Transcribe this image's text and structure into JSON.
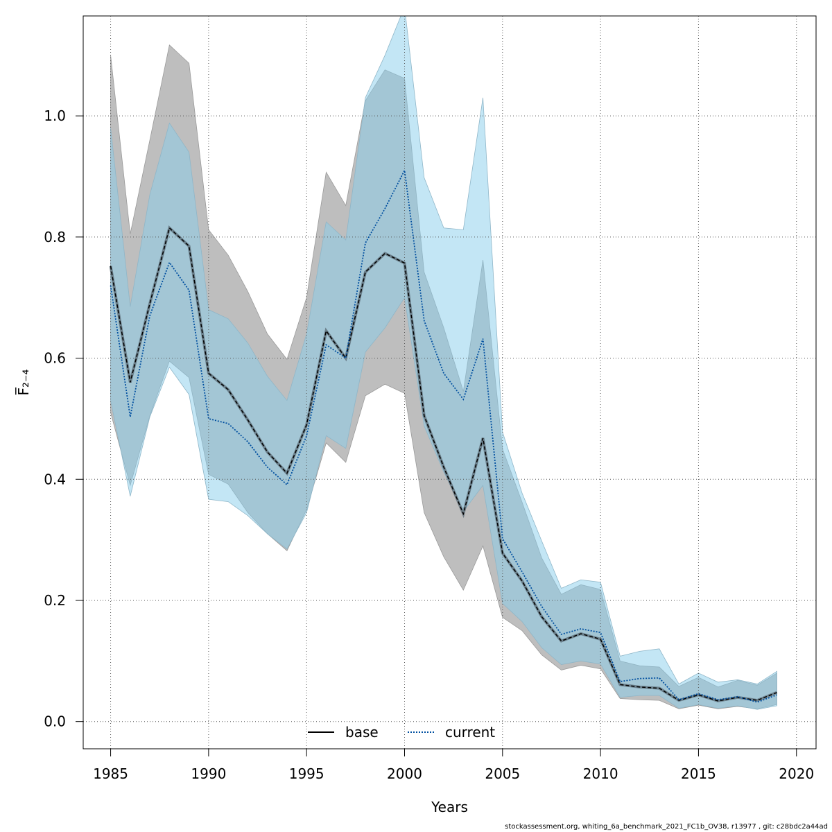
{
  "chart_data": {
    "type": "line",
    "xlabel": "Years",
    "ylabel": "F̅₂₋₄",
    "xlim": [
      1983.6,
      2021.0
    ],
    "ylim": [
      -0.045,
      1.165
    ],
    "x_ticks": [
      1985,
      1990,
      1995,
      2000,
      2005,
      2010,
      2015,
      2020
    ],
    "y_ticks": [
      0.0,
      0.2,
      0.4,
      0.6,
      0.8,
      1.0
    ],
    "y_tick_labels": [
      "0.0",
      "0.2",
      "0.4",
      "0.6",
      "0.8",
      "1.0"
    ],
    "grid": true,
    "legend_position": "bottom-center",
    "x": [
      1985,
      1986,
      1987,
      1988,
      1989,
      1990,
      1991,
      1992,
      1993,
      1994,
      1995,
      1996,
      1997,
      1998,
      1999,
      2000,
      2001,
      2002,
      2003,
      2004,
      2005,
      2006,
      2007,
      2008,
      2009,
      2010,
      2011,
      2012,
      2013,
      2014,
      2015,
      2016,
      2017,
      2018,
      2019
    ],
    "series": [
      {
        "name": "base",
        "color": "#000000",
        "line_style": "solid",
        "band_color": "#bebebe",
        "values": [
          0.752,
          0.56,
          0.69,
          0.815,
          0.785,
          0.575,
          0.548,
          0.498,
          0.445,
          0.41,
          0.49,
          0.645,
          0.6,
          0.742,
          0.773,
          0.757,
          0.505,
          0.42,
          0.343,
          0.468,
          0.278,
          0.232,
          0.173,
          0.133,
          0.145,
          0.136,
          0.061,
          0.057,
          0.055,
          0.035,
          0.044,
          0.034,
          0.04,
          0.035,
          0.048
        ],
        "lower": [
          0.51,
          0.39,
          0.505,
          0.595,
          0.568,
          0.408,
          0.392,
          0.345,
          0.31,
          0.282,
          0.35,
          0.46,
          0.428,
          0.538,
          0.557,
          0.542,
          0.345,
          0.272,
          0.217,
          0.29,
          0.172,
          0.15,
          0.11,
          0.085,
          0.093,
          0.087,
          0.038,
          0.036,
          0.035,
          0.021,
          0.027,
          0.021,
          0.025,
          0.021,
          0.028
        ],
        "upper": [
          1.1,
          0.805,
          0.96,
          1.117,
          1.087,
          0.812,
          0.77,
          0.71,
          0.64,
          0.598,
          0.7,
          0.907,
          0.852,
          1.025,
          1.076,
          1.062,
          0.742,
          0.65,
          0.545,
          0.762,
          0.45,
          0.362,
          0.27,
          0.21,
          0.226,
          0.218,
          0.1,
          0.092,
          0.09,
          0.058,
          0.073,
          0.057,
          0.068,
          0.06,
          0.08
        ]
      },
      {
        "name": "current",
        "color": "#004fa0",
        "line_style": "dotted",
        "band_color": "#87ceeb",
        "values": [
          0.72,
          0.503,
          0.67,
          0.758,
          0.712,
          0.5,
          0.492,
          0.462,
          0.42,
          0.391,
          0.472,
          0.622,
          0.6,
          0.79,
          0.847,
          0.91,
          0.662,
          0.575,
          0.532,
          0.632,
          0.302,
          0.247,
          0.19,
          0.144,
          0.153,
          0.147,
          0.066,
          0.071,
          0.072,
          0.036,
          0.046,
          0.036,
          0.041,
          0.032,
          0.044
        ],
        "lower": [
          0.53,
          0.372,
          0.503,
          0.585,
          0.54,
          0.367,
          0.363,
          0.34,
          0.31,
          0.285,
          0.345,
          0.472,
          0.451,
          0.61,
          0.65,
          0.7,
          0.488,
          0.412,
          0.347,
          0.39,
          0.195,
          0.165,
          0.122,
          0.094,
          0.1,
          0.095,
          0.04,
          0.043,
          0.043,
          0.022,
          0.028,
          0.022,
          0.026,
          0.02,
          0.026
        ],
        "upper": [
          0.98,
          0.685,
          0.87,
          0.988,
          0.94,
          0.68,
          0.665,
          0.625,
          0.57,
          0.53,
          0.64,
          0.825,
          0.795,
          1.03,
          1.1,
          1.18,
          0.898,
          0.815,
          0.812,
          1.03,
          0.478,
          0.377,
          0.298,
          0.22,
          0.234,
          0.23,
          0.108,
          0.116,
          0.12,
          0.062,
          0.08,
          0.065,
          0.069,
          0.062,
          0.083
        ]
      }
    ]
  },
  "footer_text": "stockassessment.org, whiting_6a_benchmark_2021_FC1b_OV38, r13977 , git: c28bdc2a44ad"
}
